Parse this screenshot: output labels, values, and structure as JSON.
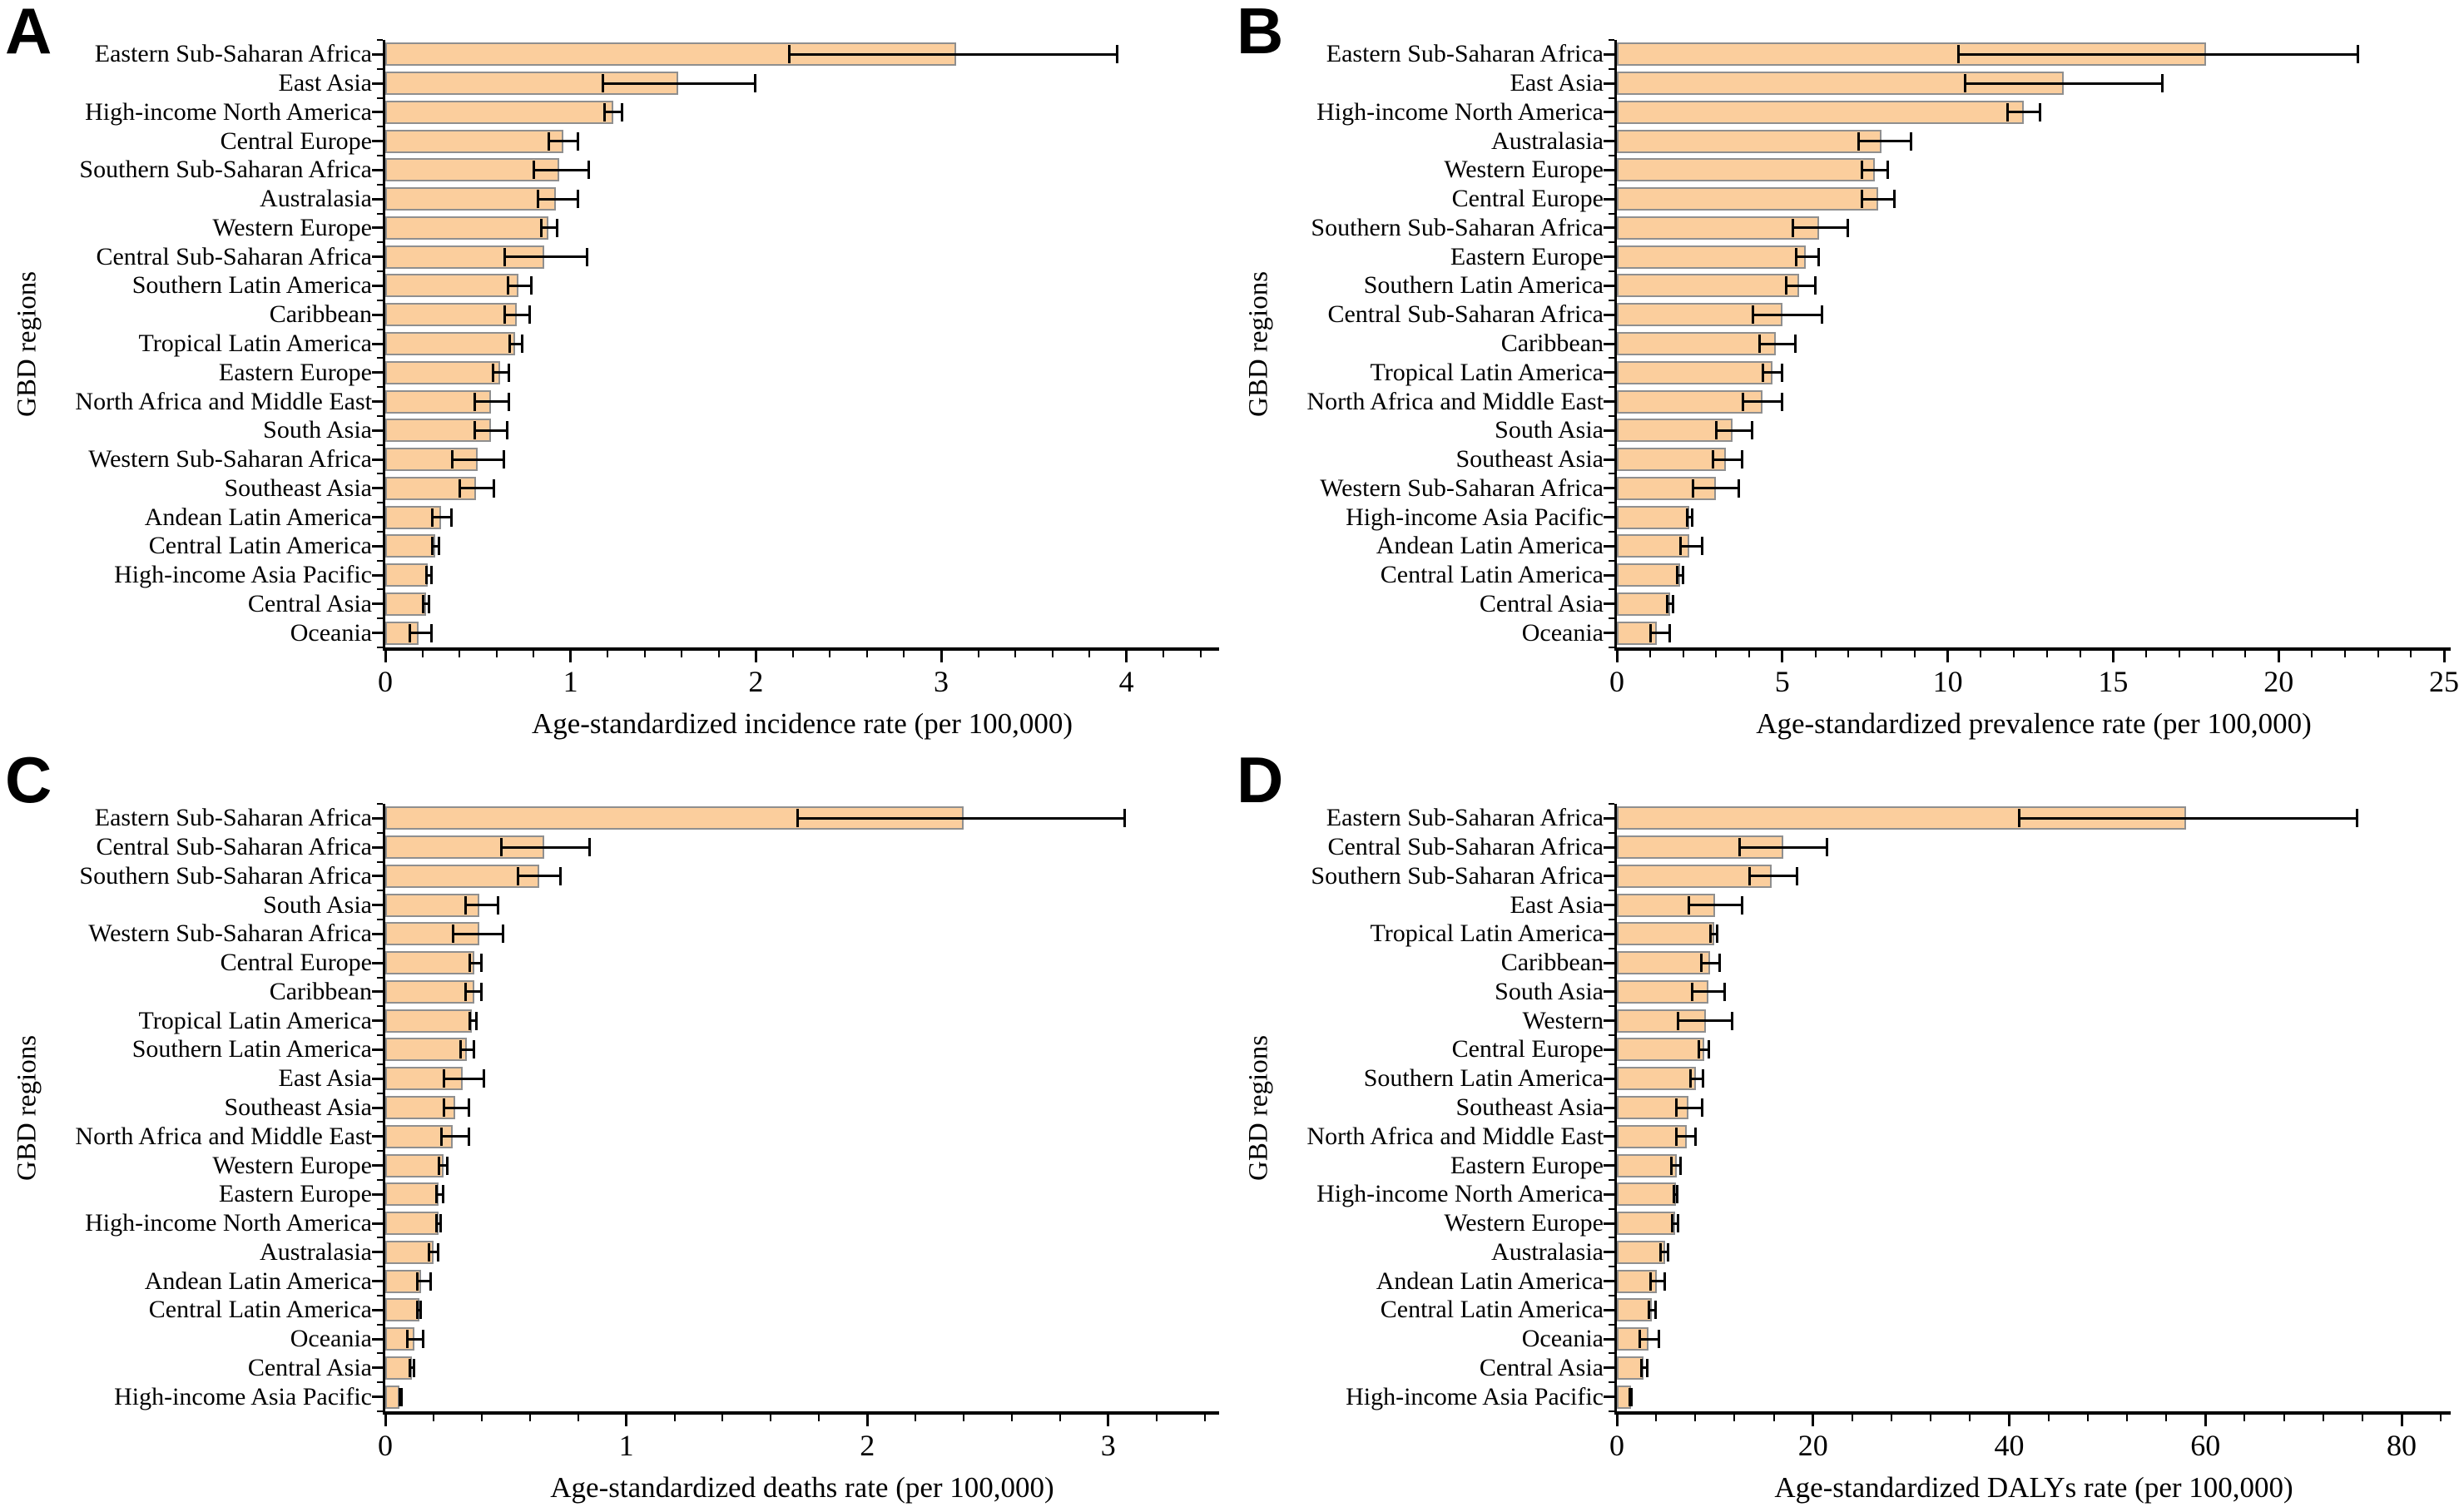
{
  "figure_description": "Four-panel figure of horizontal bar charts with 95% uncertainty-interval error bars across GBD regions",
  "colors": {
    "background": "#FFFFFF",
    "bar_fill": "#FBCE9D",
    "bar_border": "#8F8F8F",
    "error_bar": "#000000",
    "axis": "#000000",
    "text": "#000000"
  },
  "chart_data": [
    {
      "panel": "A",
      "type": "bar",
      "orientation": "horizontal",
      "xlabel": "Age-standardized incidence rate (per 100,000)",
      "ylabel": "GBD regions",
      "xlim": [
        0,
        4.5
      ],
      "xticks": [
        0,
        1,
        2,
        3,
        4
      ],
      "minor_ticks_per_interval": 4,
      "grid": false,
      "categories": [
        "Eastern Sub-Saharan Africa",
        "East Asia",
        "High-income North America",
        "Central Europe",
        "Southern Sub-Saharan Africa",
        "Australasia",
        "Western Europe",
        "Central Sub-Saharan Africa",
        "Southern Latin America",
        "Caribbean",
        "Tropical Latin America",
        "Eastern Europe",
        "North Africa and Middle East",
        "South Asia",
        "Western Sub-Saharan Africa",
        "Southeast Asia",
        "Andean Latin America",
        "Central Latin America",
        "High-income Asia Pacific",
        "Central Asia",
        "Oceania"
      ],
      "values": [
        3.08,
        1.58,
        1.23,
        0.96,
        0.94,
        0.92,
        0.88,
        0.86,
        0.72,
        0.71,
        0.7,
        0.62,
        0.57,
        0.57,
        0.5,
        0.49,
        0.3,
        0.27,
        0.23,
        0.22,
        0.18
      ],
      "ci_low": [
        2.18,
        1.17,
        1.18,
        0.88,
        0.8,
        0.82,
        0.84,
        0.64,
        0.66,
        0.64,
        0.67,
        0.58,
        0.48,
        0.48,
        0.36,
        0.4,
        0.25,
        0.25,
        0.22,
        0.2,
        0.13
      ],
      "ci_high": [
        3.95,
        2.0,
        1.28,
        1.04,
        1.1,
        1.04,
        0.93,
        1.09,
        0.79,
        0.78,
        0.74,
        0.67,
        0.67,
        0.66,
        0.64,
        0.59,
        0.36,
        0.29,
        0.25,
        0.24,
        0.25
      ]
    },
    {
      "panel": "B",
      "type": "bar",
      "orientation": "horizontal",
      "xlabel": "Age-standardized prevalence rate (per 100,000)",
      "ylabel": "GBD regions",
      "xlim": [
        0,
        25.2
      ],
      "xticks": [
        0,
        5,
        10,
        15,
        20,
        25
      ],
      "minor_ticks_per_interval": 4,
      "grid": false,
      "categories": [
        "Eastern Sub-Saharan Africa",
        "East Asia",
        "High-income North America",
        "Australasia",
        "Western Europe",
        "Central Europe",
        "Southern Sub-Saharan Africa",
        "Eastern Europe",
        "Southern Latin America",
        "Central Sub-Saharan Africa",
        "Caribbean",
        "Tropical Latin America",
        "North Africa and Middle East",
        "South Asia",
        "Southeast Asia",
        "Western Sub-Saharan Africa",
        "High-income Asia Pacific",
        "Andean Latin America",
        "Central Latin America",
        "Central Asia",
        "Oceania"
      ],
      "values": [
        17.8,
        13.5,
        12.3,
        8.0,
        7.8,
        7.9,
        6.1,
        5.7,
        5.5,
        5.0,
        4.8,
        4.7,
        4.4,
        3.5,
        3.3,
        3.0,
        2.2,
        2.2,
        1.9,
        1.6,
        1.2
      ],
      "ci_low": [
        10.3,
        10.5,
        11.8,
        7.3,
        7.4,
        7.4,
        5.3,
        5.4,
        5.1,
        4.1,
        4.3,
        4.4,
        3.8,
        3.0,
        2.9,
        2.3,
        2.1,
        1.9,
        1.8,
        1.5,
        1.0
      ],
      "ci_high": [
        22.4,
        16.5,
        12.8,
        8.9,
        8.2,
        8.4,
        7.0,
        6.1,
        6.0,
        6.2,
        5.4,
        5.0,
        5.0,
        4.1,
        3.8,
        3.7,
        2.3,
        2.6,
        2.0,
        1.7,
        1.6
      ]
    },
    {
      "panel": "C",
      "type": "bar",
      "orientation": "horizontal",
      "xlabel": "Age-standardized deaths rate (per 100,000)",
      "ylabel": "GBD regions",
      "xlim": [
        0,
        3.46
      ],
      "xticks": [
        0,
        1,
        2,
        3
      ],
      "minor_ticks_per_interval": 4,
      "grid": false,
      "categories": [
        "Eastern Sub-Saharan Africa",
        "Central Sub-Saharan Africa",
        "Southern Sub-Saharan Africa",
        "South Asia",
        "Western Sub-Saharan Africa",
        "Central Europe",
        "Caribbean",
        "Tropical Latin America",
        "Southern Latin America",
        "East Asia",
        "Southeast Asia",
        "North Africa and Middle East",
        "Western Europe",
        "Eastern Europe",
        "High-income North America",
        "Australasia",
        "Andean Latin America",
        "Central Latin America",
        "Oceania",
        "Central Asia",
        "High-income Asia Pacific"
      ],
      "values": [
        2.4,
        0.66,
        0.64,
        0.39,
        0.39,
        0.37,
        0.37,
        0.36,
        0.34,
        0.32,
        0.29,
        0.28,
        0.24,
        0.22,
        0.22,
        0.2,
        0.15,
        0.14,
        0.12,
        0.11,
        0.06
      ],
      "ci_low": [
        1.71,
        0.48,
        0.55,
        0.33,
        0.28,
        0.35,
        0.33,
        0.35,
        0.31,
        0.24,
        0.24,
        0.23,
        0.22,
        0.21,
        0.21,
        0.18,
        0.13,
        0.13,
        0.09,
        0.1,
        0.06
      ],
      "ci_high": [
        3.07,
        0.85,
        0.73,
        0.47,
        0.49,
        0.4,
        0.4,
        0.38,
        0.37,
        0.41,
        0.35,
        0.35,
        0.26,
        0.24,
        0.23,
        0.22,
        0.19,
        0.15,
        0.16,
        0.12,
        0.07
      ]
    },
    {
      "panel": "D",
      "type": "bar",
      "orientation": "horizontal",
      "xlabel": "Age-standardized DALYs rate (per 100,000)",
      "ylabel": "GBD regions",
      "xlim": [
        0,
        85
      ],
      "xticks": [
        0,
        20,
        40,
        60,
        80
      ],
      "minor_ticks_per_interval": 4,
      "grid": false,
      "categories": [
        "Eastern Sub-Saharan Africa",
        "Central Sub-Saharan Africa",
        "Southern Sub-Saharan Africa",
        "East Asia",
        "Tropical Latin America",
        "Caribbean",
        "South Asia",
        "Western",
        "Central Europe",
        "Southern Latin America",
        "Southeast Asia",
        "North Africa and Middle East",
        "Eastern Europe",
        "High-income North America",
        "Western Europe",
        "Australasia",
        "Andean Latin America",
        "Central Latin America",
        "Oceania",
        "Central Asia",
        "High-income Asia Pacific"
      ],
      "values": [
        58.0,
        17.0,
        15.8,
        10.0,
        9.9,
        9.5,
        9.3,
        9.1,
        8.9,
        8.1,
        7.3,
        7.1,
        6.1,
        6.0,
        5.9,
        4.9,
        4.1,
        3.6,
        3.2,
        2.7,
        1.4
      ],
      "ci_low": [
        41.0,
        12.5,
        13.5,
        7.3,
        9.5,
        8.6,
        7.6,
        6.2,
        8.3,
        7.5,
        6.0,
        6.0,
        5.5,
        5.8,
        5.6,
        4.4,
        3.4,
        3.2,
        2.3,
        2.5,
        1.3
      ],
      "ci_high": [
        75.5,
        21.5,
        18.4,
        12.8,
        10.3,
        10.5,
        11.0,
        11.8,
        9.4,
        8.8,
        8.7,
        8.1,
        6.5,
        6.2,
        6.3,
        5.3,
        4.9,
        4.0,
        4.3,
        3.1,
        1.5
      ]
    }
  ]
}
